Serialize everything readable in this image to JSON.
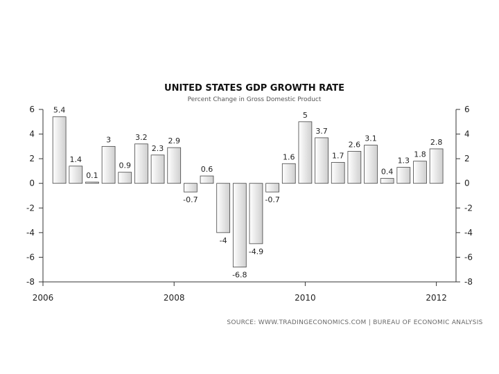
{
  "chart_data": {
    "type": "bar",
    "title": "UNITED STATES GDP GROWTH RATE",
    "subtitle": "Percent Change in Gross Domestic Product",
    "ylabel": "",
    "xlabel": "",
    "ylim": [
      -8,
      6
    ],
    "yticks": [
      6,
      4,
      2,
      0,
      -2,
      -4,
      -6,
      -8
    ],
    "xlim": [
      2006,
      2012.3
    ],
    "xticks": [
      2006,
      2008,
      2010,
      2012
    ],
    "series": [
      {
        "name": "GDP Growth Rate",
        "x": [
          2006.25,
          2006.5,
          2006.75,
          2007.0,
          2007.25,
          2007.5,
          2007.75,
          2008.0,
          2008.25,
          2008.5,
          2008.75,
          2009.0,
          2009.25,
          2009.5,
          2009.75,
          2010.0,
          2010.25,
          2010.5,
          2010.75,
          2011.0,
          2011.25,
          2011.5,
          2011.75,
          2012.0
        ],
        "values": [
          5.4,
          1.4,
          0.1,
          3,
          0.9,
          3.2,
          2.3,
          2.9,
          -0.7,
          0.6,
          -4,
          -6.8,
          -4.9,
          -0.7,
          1.6,
          5,
          3.7,
          1.7,
          2.6,
          3.1,
          0.4,
          1.3,
          1.8,
          2.8
        ],
        "labels": [
          "5.4",
          "1.4",
          "0.1",
          "3",
          "0.9",
          "3.2",
          "2.3",
          "2.9",
          "-0.7",
          "0.6",
          "-4",
          "-6.8",
          "-4.9",
          "-0.7",
          "1.6",
          "5",
          "3.7",
          "1.7",
          "2.6",
          "3.1",
          "0.4",
          "1.3",
          "1.8",
          "2.8"
        ]
      }
    ],
    "grid": false,
    "legend": "none",
    "source": "SOURCE: WWW.TRADINGECONOMICS.COM | BUREAU OF ECONOMIC ANALYSIS"
  },
  "colors": {
    "bar_fill_light": "#ffffff",
    "bar_fill_dark": "#cfcfcf",
    "bar_stroke": "#444444",
    "axis": "#333333"
  }
}
